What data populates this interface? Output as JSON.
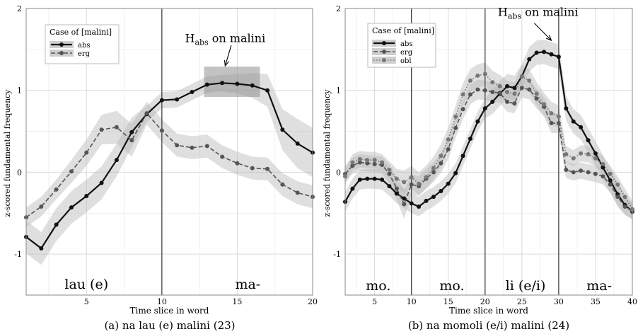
{
  "chart_data": [
    {
      "type": "line",
      "caption": "(a) na lau (e) malini (23)",
      "xlabel": "Time slice in word",
      "ylabel": "z-scored fundamental frequency",
      "xlim": [
        1,
        20
      ],
      "ylim": [
        -1.5,
        2
      ],
      "xticks": [
        5,
        10,
        15,
        20
      ],
      "yticks": [
        -1,
        0,
        1,
        2
      ],
      "grid": true,
      "legend_title": "Case of [malini]",
      "legend_position": "top-left",
      "series": [
        {
          "name": "abs",
          "style": "solid",
          "color": "#111111",
          "x": [
            1,
            2,
            3,
            4,
            5,
            6,
            7,
            8,
            9,
            10,
            11,
            12,
            13,
            14,
            15,
            16,
            17,
            18,
            19,
            20
          ],
          "values": [
            -0.79,
            -0.93,
            -0.64,
            -0.43,
            -0.29,
            -0.13,
            0.15,
            0.49,
            0.71,
            0.88,
            0.89,
            0.98,
            1.07,
            1.09,
            1.08,
            1.06,
            1.0,
            0.52,
            0.35,
            0.24
          ],
          "band_halfwidth": [
            0.2,
            0.2,
            0.2,
            0.2,
            0.2,
            0.2,
            0.2,
            0.18,
            0.1,
            0.1,
            0.1,
            0.1,
            0.1,
            0.1,
            0.12,
            0.15,
            0.2,
            0.25,
            0.3,
            0.3
          ]
        },
        {
          "name": "erg",
          "style": "dashed",
          "color": "#555555",
          "x": [
            1,
            2,
            3,
            4,
            5,
            6,
            7,
            8,
            9,
            10,
            11,
            12,
            13,
            14,
            15,
            16,
            17,
            18,
            19,
            20
          ],
          "values": [
            -0.55,
            -0.42,
            -0.21,
            0.01,
            0.24,
            0.52,
            0.55,
            0.39,
            0.72,
            0.51,
            0.33,
            0.3,
            0.32,
            0.19,
            0.11,
            0.05,
            0.04,
            -0.15,
            -0.25,
            -0.3
          ],
          "band_halfwidth": [
            0.12,
            0.12,
            0.12,
            0.14,
            0.16,
            0.18,
            0.2,
            0.2,
            0.14,
            0.14,
            0.14,
            0.14,
            0.14,
            0.14,
            0.14,
            0.14,
            0.14,
            0.14,
            0.14,
            0.14
          ]
        }
      ],
      "vlines": [
        10
      ],
      "highlight_box": {
        "x": [
          12.8,
          16.5
        ],
        "y": [
          0.92,
          1.29
        ]
      },
      "annotations": {
        "h_label_main": "H",
        "h_label_sub": "abs",
        "h_label_rest": " on malini",
        "h_arrow": {
          "from": [
            14.6,
            1.55
          ],
          "to": [
            14.2,
            1.3
          ]
        }
      },
      "region_labels": [
        {
          "text": "lau (e)",
          "x": 5
        }
      ],
      "region_labels_right": [
        {
          "text": "ma-",
          "x": 15.7
        }
      ]
    },
    {
      "type": "line",
      "caption": "(b) na momoli (e/i) malini (24)",
      "xlabel": "Time slice in word",
      "ylabel": "z-scored fundamental frequency",
      "xlim": [
        1,
        40
      ],
      "ylim": [
        -1.5,
        2
      ],
      "xticks": [
        5,
        10,
        15,
        20,
        25,
        30,
        35,
        40
      ],
      "yticks": [
        -1,
        0,
        1,
        2
      ],
      "grid": true,
      "legend_title": "Case of [malini]",
      "legend_position": "top-left",
      "series": [
        {
          "name": "abs",
          "style": "solid",
          "color": "#111111",
          "x": [
            1,
            2,
            3,
            4,
            5,
            6,
            7,
            8,
            9,
            10,
            11,
            12,
            13,
            14,
            15,
            16,
            17,
            18,
            19,
            20,
            21,
            22,
            23,
            24,
            25,
            26,
            27,
            28,
            29,
            30,
            31,
            32,
            33,
            34,
            35,
            36,
            37,
            38,
            39,
            40
          ],
          "values": [
            -0.36,
            -0.2,
            -0.09,
            -0.08,
            -0.08,
            -0.09,
            -0.17,
            -0.26,
            -0.32,
            -0.38,
            -0.42,
            -0.35,
            -0.3,
            -0.23,
            -0.14,
            -0.01,
            0.2,
            0.41,
            0.62,
            0.78,
            0.86,
            0.96,
            1.05,
            1.03,
            1.17,
            1.38,
            1.46,
            1.47,
            1.44,
            1.41,
            0.78,
            0.62,
            0.55,
            0.39,
            0.23,
            0.06,
            -0.1,
            -0.27,
            -0.4,
            -0.48
          ],
          "band_halfwidth": [
            0.12,
            0.12,
            0.12,
            0.12,
            0.12,
            0.12,
            0.12,
            0.12,
            0.12,
            0.12,
            0.12,
            0.12,
            0.12,
            0.12,
            0.12,
            0.12,
            0.12,
            0.12,
            0.12,
            0.12,
            0.15,
            0.15,
            0.15,
            0.15,
            0.15,
            0.15,
            0.15,
            0.15,
            0.15,
            0.15,
            0.15,
            0.15,
            0.15,
            0.15,
            0.15,
            0.15,
            0.15,
            0.15,
            0.12,
            0.1
          ]
        },
        {
          "name": "erg",
          "style": "dashed",
          "color": "#555555",
          "x": [
            1,
            2,
            3,
            4,
            5,
            6,
            7,
            8,
            9,
            10,
            11,
            12,
            13,
            14,
            15,
            16,
            17,
            18,
            19,
            20,
            21,
            22,
            23,
            24,
            25,
            26,
            27,
            28,
            29,
            30,
            31,
            32,
            33,
            34,
            35,
            36,
            37,
            38,
            39,
            40
          ],
          "values": [
            -0.02,
            0.08,
            0.12,
            0.11,
            0.1,
            0.09,
            -0.02,
            -0.2,
            -0.39,
            -0.15,
            -0.17,
            -0.08,
            0.0,
            0.11,
            0.28,
            0.54,
            0.77,
            0.95,
            1.01,
            1.0,
            0.98,
            0.97,
            0.86,
            0.84,
            1.03,
            1.01,
            0.9,
            0.8,
            0.6,
            0.6,
            0.03,
            0.0,
            0.02,
            0.0,
            -0.02,
            -0.05,
            -0.15,
            -0.3,
            -0.42,
            -0.47
          ],
          "band_halfwidth": [
            0.1,
            0.1,
            0.1,
            0.1,
            0.1,
            0.1,
            0.12,
            0.14,
            0.18,
            0.12,
            0.12,
            0.12,
            0.12,
            0.12,
            0.12,
            0.12,
            0.12,
            0.12,
            0.12,
            0.12,
            0.12,
            0.12,
            0.12,
            0.12,
            0.12,
            0.12,
            0.12,
            0.12,
            0.12,
            0.12,
            0.1,
            0.1,
            0.1,
            0.1,
            0.1,
            0.1,
            0.1,
            0.1,
            0.1,
            0.1
          ]
        },
        {
          "name": "obl",
          "style": "dotted",
          "color": "#777777",
          "x": [
            1,
            2,
            3,
            4,
            5,
            6,
            7,
            8,
            9,
            10,
            11,
            12,
            13,
            14,
            15,
            16,
            17,
            18,
            19,
            20,
            21,
            22,
            23,
            24,
            25,
            26,
            27,
            28,
            29,
            30,
            31,
            32,
            33,
            34,
            35,
            36,
            37,
            38,
            39,
            40
          ],
          "values": [
            -0.05,
            0.12,
            0.16,
            0.15,
            0.15,
            0.12,
            0.03,
            -0.08,
            -0.12,
            -0.06,
            -0.14,
            -0.06,
            0.05,
            0.2,
            0.4,
            0.68,
            0.95,
            1.12,
            1.18,
            1.2,
            1.1,
            1.05,
            0.98,
            0.96,
            1.17,
            1.12,
            0.96,
            0.83,
            0.72,
            0.68,
            0.22,
            0.17,
            0.23,
            0.22,
            0.17,
            0.1,
            -0.02,
            -0.15,
            -0.3,
            -0.45
          ],
          "band_halfwidth": [
            0.1,
            0.1,
            0.1,
            0.1,
            0.1,
            0.1,
            0.1,
            0.12,
            0.14,
            0.14,
            0.14,
            0.14,
            0.14,
            0.14,
            0.14,
            0.14,
            0.14,
            0.14,
            0.14,
            0.14,
            0.14,
            0.14,
            0.14,
            0.14,
            0.14,
            0.14,
            0.14,
            0.14,
            0.14,
            0.14,
            0.1,
            0.1,
            0.1,
            0.1,
            0.1,
            0.1,
            0.1,
            0.1,
            0.1,
            0.1
          ]
        }
      ],
      "vlines": [
        10,
        20,
        30
      ],
      "annotations": {
        "h_label_main": "H",
        "h_label_sub": "abs",
        "h_label_rest": " on malini",
        "h_arrow": {
          "from": [
            26.7,
            1.82
          ],
          "to": [
            29.0,
            1.61
          ]
        }
      },
      "region_labels": [
        {
          "text": "mo.",
          "x": 5.5
        },
        {
          "text": "mo.",
          "x": 15.5
        },
        {
          "text": "li (e/i)",
          "x": 25.5
        },
        {
          "text": "ma-",
          "x": 35.5
        }
      ]
    }
  ]
}
